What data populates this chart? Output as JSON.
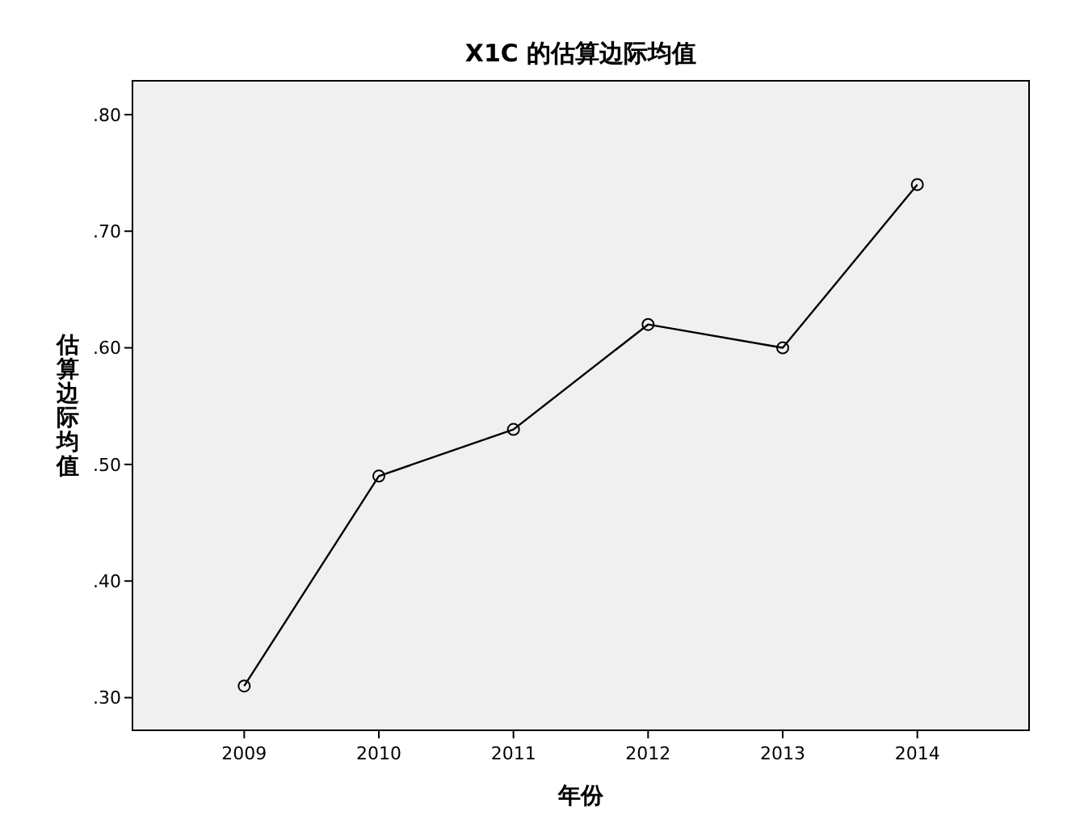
{
  "chart_data": {
    "type": "line",
    "title": "X1C 的估算边际均值",
    "xlabel": "年份",
    "ylabel": "估算边际均值",
    "categories": [
      "2009",
      "2010",
      "2011",
      "2012",
      "2013",
      "2014"
    ],
    "series": [
      {
        "color": "#000000",
        "values": [
          0.31,
          0.49,
          0.53,
          0.62,
          0.6,
          0.74
        ]
      }
    ],
    "ylim": [
      0.272,
      0.829
    ],
    "yticks": [
      {
        "value": 0.3,
        "label": ".30"
      },
      {
        "value": 0.4,
        "label": ".40"
      },
      {
        "value": 0.5,
        "label": ".50"
      },
      {
        "value": 0.6,
        "label": ".60"
      },
      {
        "value": 0.7,
        "label": ".70"
      },
      {
        "value": 0.8,
        "label": ".80"
      }
    ],
    "marker": "circle",
    "line_style": "solid",
    "grid": false
  }
}
